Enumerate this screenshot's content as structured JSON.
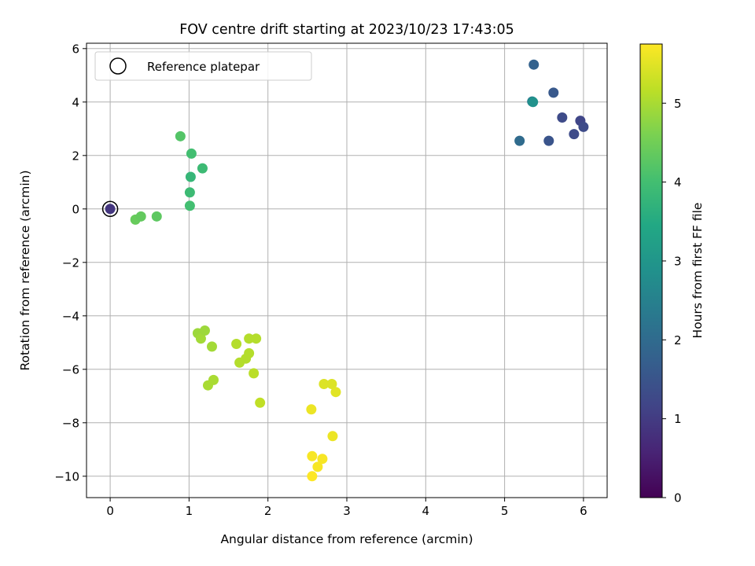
{
  "chart_data": {
    "type": "scatter",
    "title": "FOV centre drift starting at 2023/10/23 17:43:05",
    "xlabel": "Angular distance from reference (arcmin)",
    "ylabel": "Rotation from reference (arcmin)",
    "xlim": [
      -0.3,
      6.3
    ],
    "ylim": [
      -10.8,
      6.2
    ],
    "xticks": [
      0,
      1,
      2,
      3,
      4,
      5,
      6
    ],
    "xtick_labels": [
      "0",
      "1",
      "2",
      "3",
      "4",
      "5",
      "6"
    ],
    "yticks": [
      -10,
      -8,
      -6,
      -4,
      -2,
      0,
      2,
      4,
      6
    ],
    "ytick_labels": [
      "−10",
      "−8",
      "−6",
      "−4",
      "−2",
      "0",
      "2",
      "4",
      "6"
    ],
    "grid": true,
    "legend": {
      "position": "top-left",
      "entries": [
        "Reference platepar"
      ]
    },
    "colorbar": {
      "label": "Hours from first FF file",
      "range": [
        0,
        5.75
      ],
      "ticks": [
        0,
        1,
        2,
        3,
        4,
        5
      ],
      "tick_labels": [
        "0",
        "1",
        "2",
        "3",
        "4",
        "5"
      ],
      "colormap": "viridis"
    },
    "reference_point": {
      "x": 0,
      "y": 0
    },
    "points": [
      {
        "x": 0.0,
        "y": 0.0,
        "c": 0.9
      },
      {
        "x": 5.37,
        "y": 5.4,
        "c": 1.8
      },
      {
        "x": 5.62,
        "y": 4.35,
        "c": 1.6
      },
      {
        "x": 5.35,
        "y": 4.02,
        "c": 2.4
      },
      {
        "x": 5.36,
        "y": 4.0,
        "c": 2.9
      },
      {
        "x": 5.73,
        "y": 3.42,
        "c": 1.3
      },
      {
        "x": 5.96,
        "y": 3.3,
        "c": 1.2
      },
      {
        "x": 6.0,
        "y": 3.07,
        "c": 1.3
      },
      {
        "x": 5.88,
        "y": 2.8,
        "c": 1.3
      },
      {
        "x": 5.19,
        "y": 2.55,
        "c": 2.0
      },
      {
        "x": 5.56,
        "y": 2.55,
        "c": 1.5
      },
      {
        "x": 0.89,
        "y": 2.72,
        "c": 4.2
      },
      {
        "x": 1.03,
        "y": 2.07,
        "c": 4.0
      },
      {
        "x": 1.17,
        "y": 1.52,
        "c": 3.9
      },
      {
        "x": 1.02,
        "y": 1.2,
        "c": 3.8
      },
      {
        "x": 1.01,
        "y": 0.62,
        "c": 3.9
      },
      {
        "x": 1.01,
        "y": 0.12,
        "c": 4.0
      },
      {
        "x": 0.32,
        "y": -0.4,
        "c": 4.4
      },
      {
        "x": 0.39,
        "y": -0.28,
        "c": 4.35
      },
      {
        "x": 0.59,
        "y": -0.28,
        "c": 4.3
      },
      {
        "x": 1.11,
        "y": -4.65,
        "c": 4.9
      },
      {
        "x": 1.15,
        "y": -4.85,
        "c": 4.95
      },
      {
        "x": 1.2,
        "y": -4.55,
        "c": 4.9
      },
      {
        "x": 1.29,
        "y": -5.15,
        "c": 4.95
      },
      {
        "x": 1.24,
        "y": -6.6,
        "c": 5.0
      },
      {
        "x": 1.31,
        "y": -6.4,
        "c": 5.0
      },
      {
        "x": 1.6,
        "y": -5.05,
        "c": 5.1
      },
      {
        "x": 1.64,
        "y": -5.75,
        "c": 5.1
      },
      {
        "x": 1.72,
        "y": -5.6,
        "c": 5.1
      },
      {
        "x": 1.76,
        "y": -5.4,
        "c": 5.1
      },
      {
        "x": 1.76,
        "y": -4.85,
        "c": 5.1
      },
      {
        "x": 1.85,
        "y": -4.85,
        "c": 5.1
      },
      {
        "x": 1.82,
        "y": -6.15,
        "c": 5.15
      },
      {
        "x": 1.9,
        "y": -7.25,
        "c": 5.2
      },
      {
        "x": 2.55,
        "y": -7.5,
        "c": 5.6
      },
      {
        "x": 2.71,
        "y": -6.55,
        "c": 5.45
      },
      {
        "x": 2.81,
        "y": -6.55,
        "c": 5.45
      },
      {
        "x": 2.86,
        "y": -6.85,
        "c": 5.5
      },
      {
        "x": 2.82,
        "y": -8.5,
        "c": 5.6
      },
      {
        "x": 2.56,
        "y": -9.25,
        "c": 5.7
      },
      {
        "x": 2.69,
        "y": -9.35,
        "c": 5.7
      },
      {
        "x": 2.63,
        "y": -9.65,
        "c": 5.7
      },
      {
        "x": 2.56,
        "y": -10.0,
        "c": 5.75
      }
    ]
  }
}
